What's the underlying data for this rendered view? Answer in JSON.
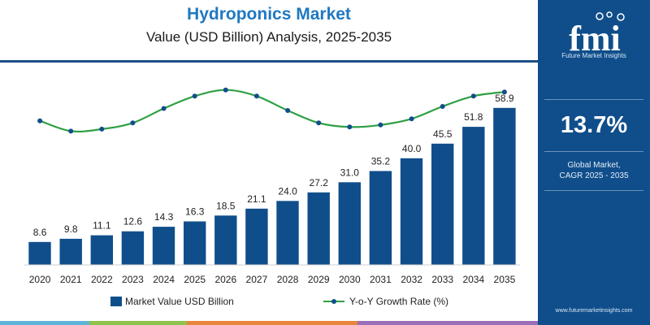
{
  "header": {
    "title": "Hydroponics Market",
    "subtitle": "Value (USD Billion) Analysis, 2025-2035"
  },
  "sidebar": {
    "logo_text": "fmi",
    "logo_subtext": "Future Market Insights",
    "cagr_value": "13.7%",
    "cagr_label_line1": "Global Market,",
    "cagr_label_line2": "CAGR 2025 - 2035",
    "website": "www.futuremarketinsights.com"
  },
  "colors": {
    "bar": "#104e8b",
    "line": "#2ea043",
    "marker": "#104e8b",
    "title": "#1f78c1",
    "sidebar": "#104e8b"
  },
  "chart_data": {
    "type": "bar",
    "categories": [
      "2020",
      "2021",
      "2022",
      "2023",
      "2024",
      "2025",
      "2026",
      "2027",
      "2028",
      "2029",
      "2030",
      "2031",
      "2032",
      "2033",
      "2034",
      "2035"
    ],
    "series": [
      {
        "name": "Market Value USD Billion",
        "type": "bar",
        "values": [
          8.6,
          9.8,
          11.1,
          12.6,
          14.3,
          16.3,
          18.5,
          21.1,
          24.0,
          27.2,
          31.0,
          35.2,
          40.0,
          45.5,
          51.8,
          58.9
        ],
        "labels": [
          "8.6",
          "9.8",
          "11.1",
          "12.6",
          "14.3",
          "16.3",
          "18.5",
          "21.1",
          "24.0",
          "27.2",
          "31.0",
          "35.2",
          "40.0",
          "45.5",
          "51.8",
          "58.9"
        ]
      },
      {
        "name": "Y-o-Y Growth Rate (%)",
        "type": "line",
        "values": [
          13.4,
          12.9,
          13.0,
          13.3,
          14.0,
          14.6,
          14.9,
          14.6,
          13.9,
          13.3,
          13.1,
          13.2,
          13.5,
          14.1,
          14.6,
          14.8
        ]
      }
    ],
    "ylim": [
      0,
      75
    ],
    "growth_ylim": [
      10,
      16
    ],
    "legend_position": "bottom",
    "grid": false
  }
}
